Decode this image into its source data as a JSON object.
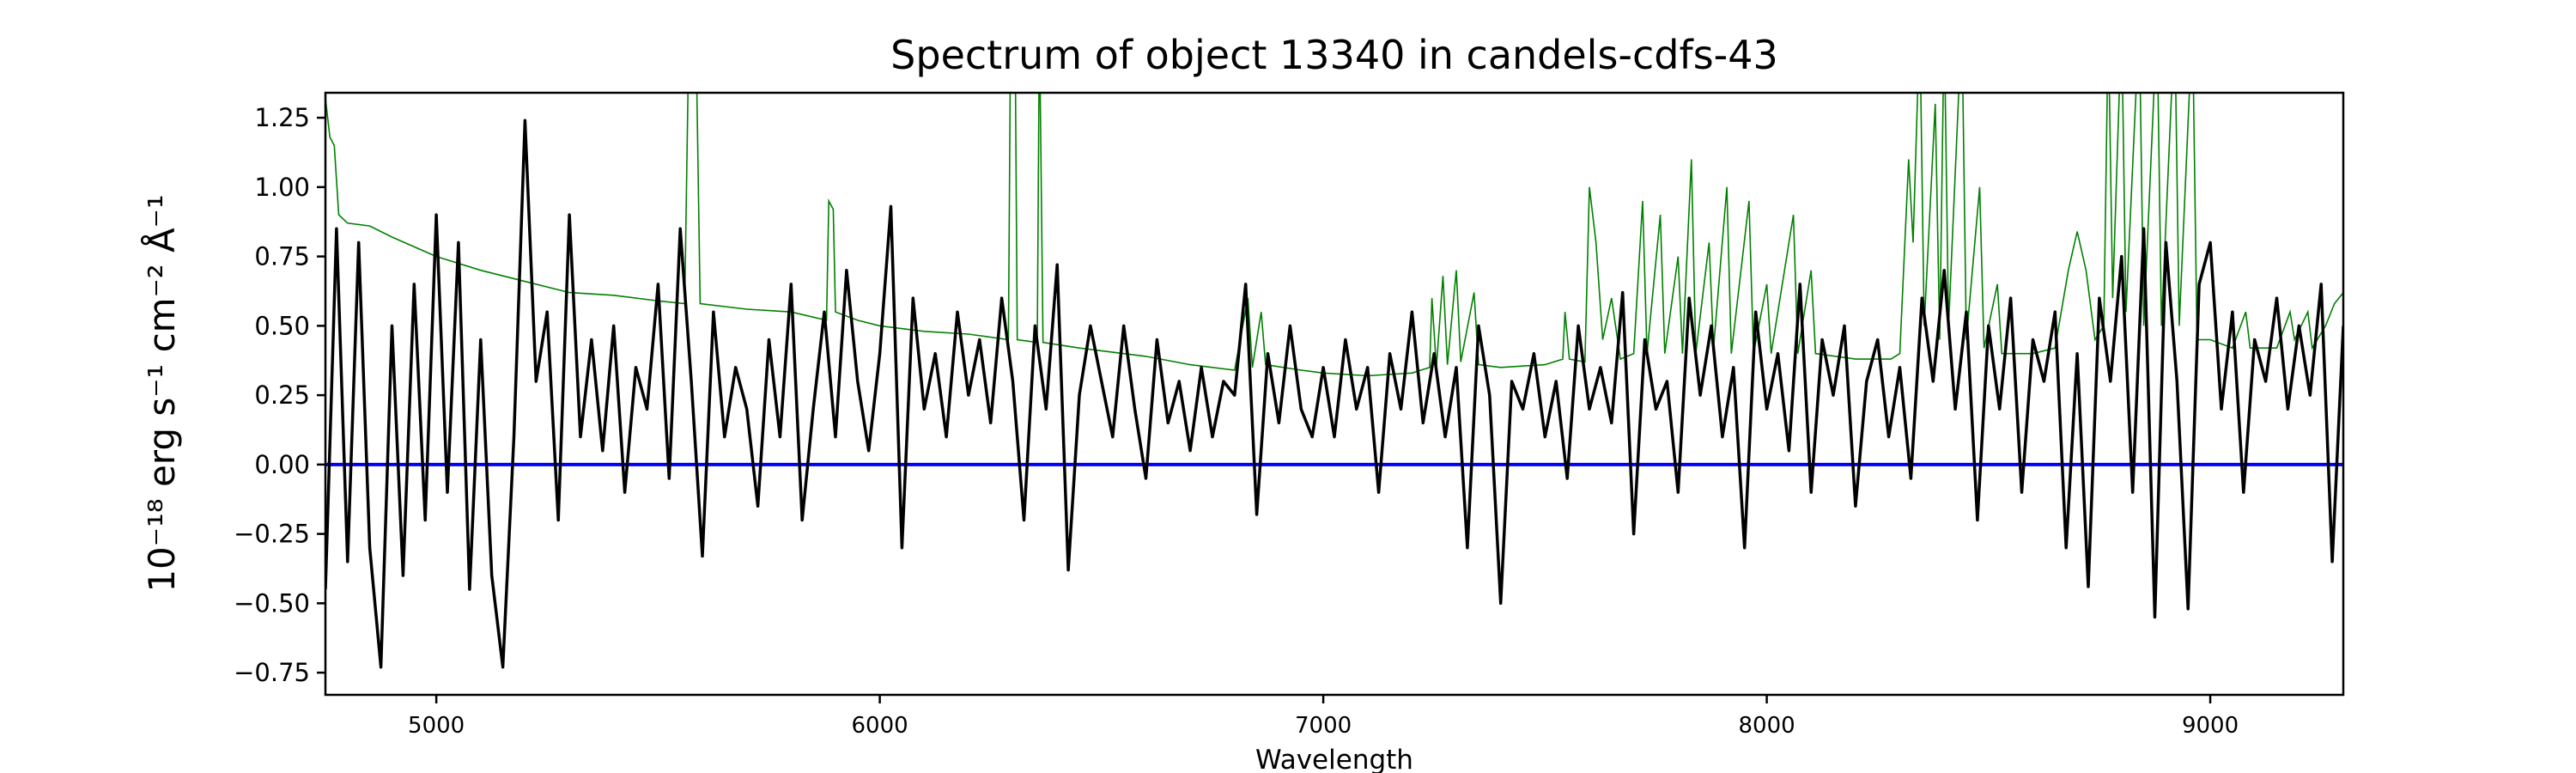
{
  "chart_data": {
    "type": "line",
    "title": "Spectrum of object 13340 in candels-cdfs-43",
    "xlabel": "Wavelength",
    "ylabel": "10⁻¹⁸ erg s⁻¹ cm⁻² Å⁻¹",
    "xlim": [
      4750,
      9300
    ],
    "ylim": [
      -0.83,
      1.34
    ],
    "xticks": [
      5000,
      6000,
      7000,
      8000,
      9000
    ],
    "xtick_labels": [
      "5000",
      "6000",
      "7000",
      "8000",
      "9000"
    ],
    "yticks": [
      -0.75,
      -0.5,
      -0.25,
      0,
      0.25,
      0.5,
      0.75,
      1.0,
      1.25
    ],
    "ytick_labels": [
      "−0.75",
      "−0.50",
      "−0.25",
      "0.00",
      "0.25",
      "0.50",
      "0.75",
      "1.00",
      "1.25"
    ],
    "grid": false,
    "colors": {
      "flux": "#000000",
      "error": "#008000",
      "zero": "#0000ff"
    },
    "series": [
      {
        "role": "flux",
        "x_start": 4750,
        "x_step": 25,
        "y": [
          -0.45,
          0.85,
          -0.35,
          0.8,
          -0.3,
          -0.73,
          0.5,
          -0.4,
          0.65,
          -0.2,
          0.9,
          -0.1,
          0.8,
          -0.45,
          0.45,
          -0.4,
          -0.73,
          0.1,
          1.24,
          0.3,
          0.55,
          -0.2,
          0.9,
          0.1,
          0.45,
          0.05,
          0.5,
          -0.1,
          0.35,
          0.2,
          0.65,
          -0.05,
          0.85,
          0.3,
          -0.33,
          0.55,
          0.1,
          0.35,
          0.2,
          -0.15,
          0.45,
          0.1,
          0.65,
          -0.2,
          0.2,
          0.55,
          0.1,
          0.7,
          0.3,
          0.05,
          0.4,
          0.93,
          -0.3,
          0.6,
          0.2,
          0.4,
          0.1,
          0.55,
          0.25,
          0.45,
          0.15,
          0.6,
          0.3,
          -0.2,
          0.5,
          0.2,
          0.72,
          -0.38,
          0.25,
          0.5,
          0.3,
          0.1,
          0.5,
          0.2,
          -0.05,
          0.45,
          0.15,
          0.3,
          0.05,
          0.35,
          0.1,
          0.3,
          0.25,
          0.65,
          -0.18,
          0.4,
          0.15,
          0.5,
          0.2,
          0.1,
          0.35,
          0.1,
          0.45,
          0.2,
          0.35,
          -0.1,
          0.4,
          0.2,
          0.55,
          0.15,
          0.4,
          0.1,
          0.35,
          -0.3,
          0.5,
          0.25,
          -0.5,
          0.3,
          0.2,
          0.4,
          0.1,
          0.3,
          -0.05,
          0.5,
          0.2,
          0.35,
          0.15,
          0.62,
          -0.25,
          0.45,
          0.2,
          0.3,
          -0.1,
          0.6,
          0.25,
          0.5,
          0.1,
          0.35,
          -0.3,
          0.55,
          0.2,
          0.4,
          0.05,
          0.65,
          -0.1,
          0.45,
          0.25,
          0.5,
          -0.15,
          0.3,
          0.45,
          0.1,
          0.35,
          -0.05,
          0.6,
          0.3,
          0.7,
          0.2,
          0.55,
          -0.2,
          0.5,
          0.2,
          0.6,
          -0.1,
          0.45,
          0.3,
          0.55,
          -0.3,
          0.4,
          -0.44,
          0.6,
          0.3,
          0.75,
          -0.1,
          0.85,
          -0.55,
          0.8,
          0.3,
          -0.52,
          0.65,
          0.8,
          0.2,
          0.55,
          -0.1,
          0.45,
          0.3,
          0.6,
          0.2,
          0.5,
          0.25,
          0.65,
          -0.35,
          0.5
        ]
      },
      {
        "role": "error",
        "points": [
          [
            4750,
            1.32
          ],
          [
            4760,
            1.18
          ],
          [
            4770,
            1.15
          ],
          [
            4780,
            0.9
          ],
          [
            4800,
            0.87
          ],
          [
            4850,
            0.86
          ],
          [
            4900,
            0.82
          ],
          [
            5000,
            0.75
          ],
          [
            5100,
            0.7
          ],
          [
            5200,
            0.66
          ],
          [
            5300,
            0.62
          ],
          [
            5400,
            0.61
          ],
          [
            5500,
            0.59
          ],
          [
            5560,
            0.58
          ],
          [
            5570,
            1.6
          ],
          [
            5585,
            1.6
          ],
          [
            5595,
            0.58
          ],
          [
            5700,
            0.56
          ],
          [
            5800,
            0.55
          ],
          [
            5880,
            0.52
          ],
          [
            5885,
            0.95
          ],
          [
            5895,
            0.92
          ],
          [
            5900,
            0.55
          ],
          [
            5950,
            0.52
          ],
          [
            6000,
            0.5
          ],
          [
            6100,
            0.48
          ],
          [
            6200,
            0.47
          ],
          [
            6290,
            0.45
          ],
          [
            6295,
            1.6
          ],
          [
            6305,
            1.6
          ],
          [
            6310,
            0.45
          ],
          [
            6355,
            0.44
          ],
          [
            6360,
            1.6
          ],
          [
            6368,
            0.44
          ],
          [
            6450,
            0.42
          ],
          [
            6500,
            0.41
          ],
          [
            6550,
            0.4
          ],
          [
            6600,
            0.39
          ],
          [
            6700,
            0.36
          ],
          [
            6800,
            0.34
          ],
          [
            6830,
            0.6
          ],
          [
            6840,
            0.35
          ],
          [
            6860,
            0.55
          ],
          [
            6870,
            0.36
          ],
          [
            6950,
            0.34
          ],
          [
            7000,
            0.33
          ],
          [
            7100,
            0.32
          ],
          [
            7200,
            0.33
          ],
          [
            7240,
            0.35
          ],
          [
            7245,
            0.6
          ],
          [
            7255,
            0.35
          ],
          [
            7270,
            0.68
          ],
          [
            7280,
            0.36
          ],
          [
            7300,
            0.7
          ],
          [
            7310,
            0.37
          ],
          [
            7340,
            0.62
          ],
          [
            7350,
            0.36
          ],
          [
            7400,
            0.35
          ],
          [
            7500,
            0.36
          ],
          [
            7540,
            0.38
          ],
          [
            7545,
            0.55
          ],
          [
            7555,
            0.38
          ],
          [
            7590,
            0.37
          ],
          [
            7600,
            1.0
          ],
          [
            7615,
            0.8
          ],
          [
            7630,
            0.45
          ],
          [
            7650,
            0.6
          ],
          [
            7670,
            0.38
          ],
          [
            7700,
            0.4
          ],
          [
            7720,
            0.95
          ],
          [
            7730,
            0.4
          ],
          [
            7760,
            0.9
          ],
          [
            7770,
            0.4
          ],
          [
            7800,
            0.75
          ],
          [
            7810,
            0.4
          ],
          [
            7830,
            1.1
          ],
          [
            7840,
            0.4
          ],
          [
            7870,
            0.8
          ],
          [
            7880,
            0.42
          ],
          [
            7910,
            1.0
          ],
          [
            7920,
            0.4
          ],
          [
            7960,
            0.95
          ],
          [
            7970,
            0.4
          ],
          [
            8000,
            0.65
          ],
          [
            8010,
            0.4
          ],
          [
            8060,
            0.9
          ],
          [
            8070,
            0.4
          ],
          [
            8100,
            0.7
          ],
          [
            8110,
            0.4
          ],
          [
            8200,
            0.38
          ],
          [
            8280,
            0.38
          ],
          [
            8300,
            0.4
          ],
          [
            8320,
            1.1
          ],
          [
            8330,
            0.8
          ],
          [
            8345,
            1.6
          ],
          [
            8355,
            0.5
          ],
          [
            8380,
            1.3
          ],
          [
            8390,
            0.45
          ],
          [
            8400,
            1.6
          ],
          [
            8410,
            0.5
          ],
          [
            8440,
            1.6
          ],
          [
            8450,
            0.45
          ],
          [
            8480,
            1.0
          ],
          [
            8490,
            0.42
          ],
          [
            8520,
            0.65
          ],
          [
            8530,
            0.4
          ],
          [
            8600,
            0.4
          ],
          [
            8650,
            0.42
          ],
          [
            8680,
            0.7
          ],
          [
            8700,
            0.84
          ],
          [
            8720,
            0.7
          ],
          [
            8740,
            0.45
          ],
          [
            8760,
            0.5
          ],
          [
            8770,
            1.6
          ],
          [
            8780,
            0.6
          ],
          [
            8800,
            1.6
          ],
          [
            8810,
            0.55
          ],
          [
            8840,
            1.6
          ],
          [
            8850,
            0.5
          ],
          [
            8880,
            1.6
          ],
          [
            8890,
            0.5
          ],
          [
            8920,
            1.6
          ],
          [
            8930,
            0.5
          ],
          [
            8960,
            1.6
          ],
          [
            8970,
            0.45
          ],
          [
            9000,
            0.45
          ],
          [
            9050,
            0.42
          ],
          [
            9080,
            0.55
          ],
          [
            9090,
            0.42
          ],
          [
            9150,
            0.42
          ],
          [
            9180,
            0.55
          ],
          [
            9190,
            0.45
          ],
          [
            9220,
            0.55
          ],
          [
            9230,
            0.42
          ],
          [
            9260,
            0.5
          ],
          [
            9280,
            0.58
          ],
          [
            9300,
            0.62
          ]
        ]
      },
      {
        "role": "zero",
        "y": 0
      }
    ]
  }
}
